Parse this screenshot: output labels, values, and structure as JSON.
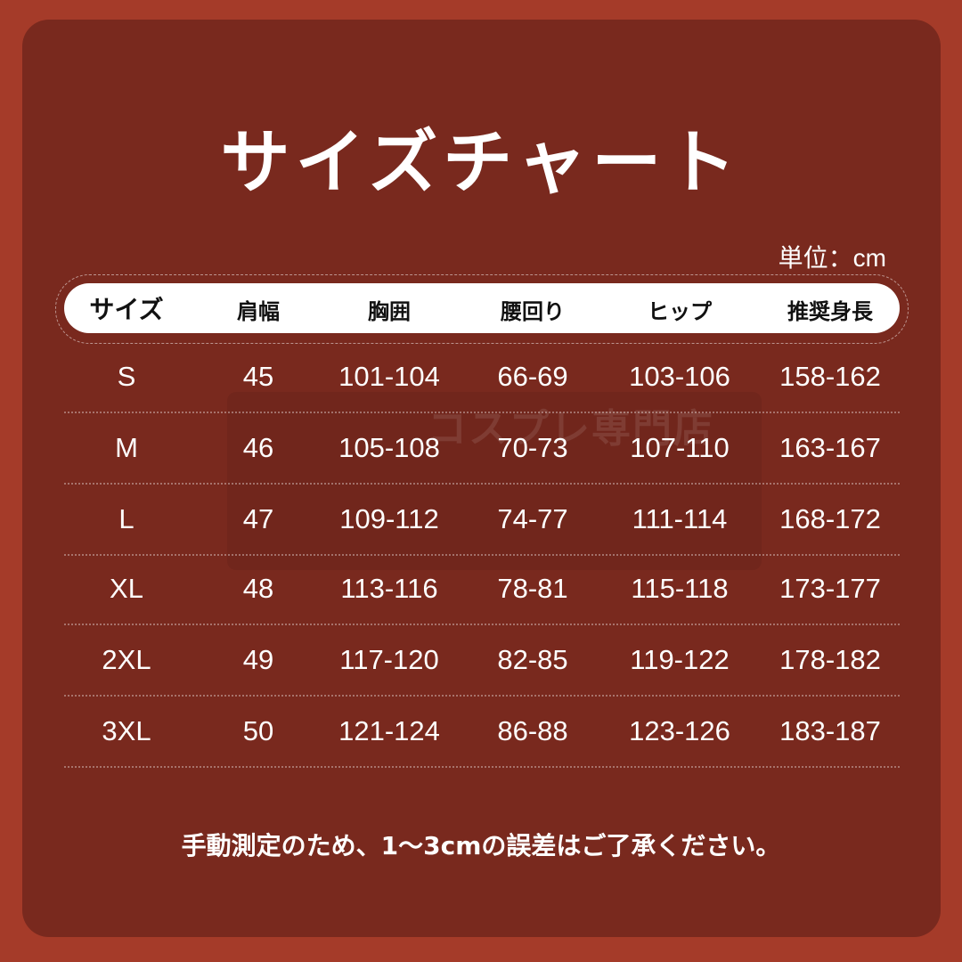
{
  "title": "サイズチャート",
  "unit": "単位：cm",
  "watermark": "コスプレ専門店",
  "headers": [
    "サイズ",
    "肩幅",
    "胸囲",
    "腰回り",
    "ヒップ",
    "推奨身長"
  ],
  "rows": [
    [
      "S",
      "45",
      "101-104",
      "66-69",
      "103-106",
      "158-162"
    ],
    [
      "M",
      "46",
      "105-108",
      "70-73",
      "107-110",
      "163-167"
    ],
    [
      "L",
      "47",
      "109-112",
      "74-77",
      "111-114",
      "168-172"
    ],
    [
      "XL",
      "48",
      "113-116",
      "78-81",
      "115-118",
      "173-177"
    ],
    [
      "2XL",
      "49",
      "117-120",
      "82-85",
      "119-122",
      "178-182"
    ],
    [
      "3XL",
      "50",
      "121-124",
      "86-88",
      "123-126",
      "183-187"
    ]
  ],
  "note": "手動測定のため、1～3cmの誤差はご了承ください。",
  "colors": {
    "background": "#a53b29",
    "panel": "#79291e",
    "header": "#ffffff"
  }
}
